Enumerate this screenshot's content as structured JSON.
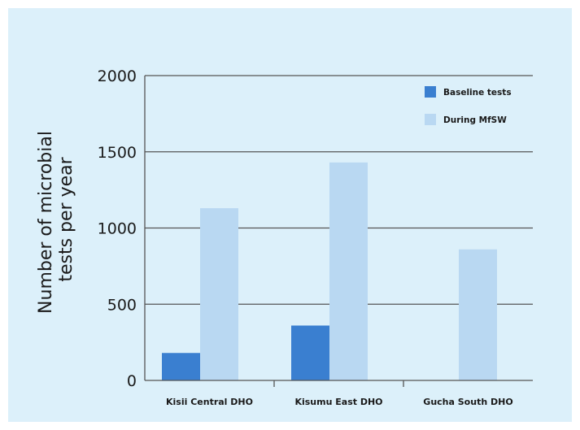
{
  "chart_data": {
    "type": "bar",
    "categories": [
      "Kisii Central DHO",
      "Kisumu East DHO",
      "Gucha South DHO"
    ],
    "series": [
      {
        "name": "Baseline tests",
        "values": [
          180,
          360,
          0
        ],
        "color": "#3a7fd0"
      },
      {
        "name": "During MfSW",
        "values": [
          1130,
          1430,
          860
        ],
        "color": "#b9d8f2"
      }
    ],
    "ylabel_lines": [
      "Number of microbial",
      "tests per year"
    ],
    "yticks": [
      "0",
      "500",
      "1000",
      "1500",
      "2000"
    ],
    "ylim": [
      0,
      2000
    ],
    "grid": true,
    "legend_position": "top-right"
  }
}
